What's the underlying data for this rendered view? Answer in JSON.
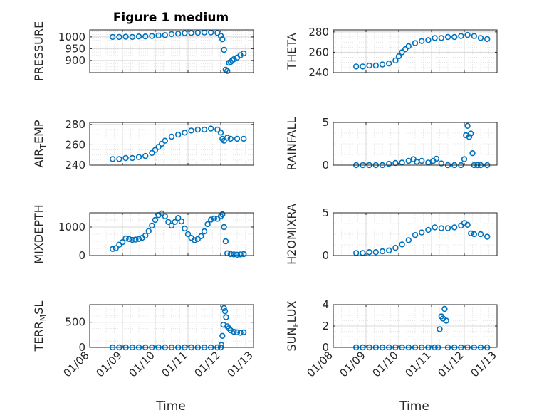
{
  "figure": {
    "title": "Figure 1 medium",
    "marker_color": "#0072bd",
    "axis_color": "#262626",
    "grid_color": "#dfdfdf",
    "xlabel": "Time",
    "xtick_labels": [
      "01/08",
      "01/09",
      "01/10",
      "01/11",
      "01/12",
      "01/13"
    ]
  },
  "chart_data": [
    {
      "type": "scatter",
      "ylabel": "PRESSURE",
      "xlim": [
        8,
        13
      ],
      "ylim": [
        848,
        1030
      ],
      "yticks": [
        900,
        950,
        1000
      ],
      "x": [
        8.7,
        8.9,
        9.1,
        9.3,
        9.5,
        9.7,
        9.9,
        10.1,
        10.3,
        10.5,
        10.7,
        10.9,
        11.1,
        11.3,
        11.5,
        11.7,
        11.9,
        12.0,
        12.05,
        12.1,
        12.15,
        12.2,
        12.25,
        12.3,
        12.35,
        12.4,
        12.5,
        12.6,
        12.7
      ],
      "y": [
        1000,
        1000,
        1001,
        1000,
        1002,
        1002,
        1004,
        1006,
        1008,
        1012,
        1014,
        1016,
        1017,
        1018,
        1019,
        1019,
        1017,
        1005,
        990,
        945,
        860,
        855,
        890,
        893,
        900,
        905,
        912,
        922,
        930
      ]
    },
    {
      "type": "scatter",
      "ylabel": "THETA",
      "xlim": [
        8,
        13
      ],
      "ylim": [
        240,
        282
      ],
      "yticks": [
        240,
        260,
        280
      ],
      "x": [
        8.7,
        8.9,
        9.1,
        9.3,
        9.5,
        9.7,
        9.9,
        10.0,
        10.1,
        10.2,
        10.3,
        10.5,
        10.7,
        10.9,
        11.1,
        11.3,
        11.5,
        11.7,
        11.9,
        12.1,
        12.3,
        12.5,
        12.7
      ],
      "y": [
        246,
        246,
        247,
        247,
        248,
        249,
        252,
        256,
        260,
        263,
        266,
        269,
        271,
        272,
        274,
        274,
        275,
        275,
        276,
        277,
        276,
        274,
        273
      ]
    },
    {
      "type": "scatter",
      "ylabel": "AIR_TEMP",
      "xlim": [
        8,
        13
      ],
      "ylim": [
        240,
        282
      ],
      "yticks": [
        240,
        260,
        280
      ],
      "x": [
        8.7,
        8.9,
        9.1,
        9.3,
        9.5,
        9.7,
        9.9,
        10.0,
        10.1,
        10.2,
        10.3,
        10.5,
        10.7,
        10.9,
        11.1,
        11.3,
        11.5,
        11.7,
        11.9,
        12.0,
        12.05,
        12.1,
        12.2,
        12.3,
        12.5,
        12.7
      ],
      "y": [
        246,
        246,
        247,
        247,
        248,
        249,
        252,
        255,
        258,
        261,
        264,
        268,
        270,
        272,
        274,
        275,
        275,
        276,
        275,
        272,
        266,
        264,
        267,
        266,
        266,
        266
      ]
    },
    {
      "type": "scatter",
      "ylabel": "RAINFALL",
      "xlim": [
        8,
        13
      ],
      "ylim": [
        0,
        5
      ],
      "yticks": [
        0,
        5
      ],
      "x": [
        8.7,
        8.9,
        9.1,
        9.3,
        9.5,
        9.7,
        9.9,
        10.1,
        10.3,
        10.45,
        10.55,
        10.7,
        10.9,
        11.05,
        11.15,
        11.3,
        11.5,
        11.7,
        11.9,
        12.0,
        12.05,
        12.1,
        12.15,
        12.2,
        12.25,
        12.3,
        12.4,
        12.5,
        12.7
      ],
      "y": [
        0,
        0,
        0,
        0,
        0,
        0.15,
        0.25,
        0.3,
        0.5,
        0.7,
        0.4,
        0.5,
        0.3,
        0.5,
        0.75,
        0.2,
        0,
        0,
        0,
        0.7,
        3.5,
        4.6,
        3.3,
        3.7,
        1.4,
        0,
        0,
        0,
        0
      ]
    },
    {
      "type": "scatter",
      "ylabel": "MIXDEPTH",
      "xlim": [
        8,
        13
      ],
      "ylim": [
        0,
        1500
      ],
      "yticks": [
        0,
        1000
      ],
      "x": [
        8.7,
        8.8,
        8.9,
        9.0,
        9.1,
        9.2,
        9.3,
        9.4,
        9.5,
        9.6,
        9.7,
        9.8,
        9.9,
        10.0,
        10.1,
        10.2,
        10.3,
        10.4,
        10.5,
        10.6,
        10.7,
        10.8,
        10.9,
        11.0,
        11.1,
        11.2,
        11.3,
        11.4,
        11.5,
        11.6,
        11.7,
        11.8,
        11.9,
        12.0,
        12.05,
        12.1,
        12.15,
        12.2,
        12.3,
        12.4,
        12.5,
        12.6,
        12.7
      ],
      "y": [
        230,
        260,
        380,
        470,
        600,
        580,
        550,
        560,
        580,
        620,
        700,
        860,
        1050,
        1250,
        1420,
        1480,
        1380,
        1180,
        1050,
        1180,
        1320,
        1200,
        950,
        750,
        620,
        540,
        580,
        680,
        850,
        1100,
        1260,
        1300,
        1290,
        1380,
        1450,
        1000,
        500,
        80,
        50,
        40,
        30,
        40,
        50
      ]
    },
    {
      "type": "scatter",
      "ylabel": "H2OMIXRA",
      "xlim": [
        8,
        13
      ],
      "ylim": [
        0,
        5
      ],
      "yticks": [
        0,
        5
      ],
      "x": [
        8.7,
        8.9,
        9.1,
        9.3,
        9.5,
        9.7,
        9.9,
        10.1,
        10.3,
        10.5,
        10.7,
        10.9,
        11.1,
        11.3,
        11.5,
        11.7,
        11.9,
        12.0,
        12.1,
        12.2,
        12.3,
        12.5,
        12.7
      ],
      "y": [
        0.3,
        0.3,
        0.4,
        0.4,
        0.5,
        0.6,
        0.9,
        1.3,
        1.8,
        2.4,
        2.7,
        3.0,
        3.3,
        3.2,
        3.2,
        3.3,
        3.5,
        3.8,
        3.6,
        2.6,
        2.5,
        2.5,
        2.2
      ]
    },
    {
      "type": "scatter",
      "ylabel": "TERR_MSL",
      "xlim": [
        8,
        13
      ],
      "ylim": [
        0,
        850
      ],
      "yticks": [
        0,
        500
      ],
      "x": [
        8.7,
        8.9,
        9.1,
        9.3,
        9.5,
        9.7,
        9.9,
        10.1,
        10.3,
        10.5,
        10.7,
        10.9,
        11.1,
        11.3,
        11.5,
        11.7,
        11.9,
        12.0,
        12.02,
        12.05,
        12.08,
        12.1,
        12.13,
        12.16,
        12.2,
        12.25,
        12.3,
        12.4,
        12.5,
        12.6,
        12.7
      ],
      "y": [
        0,
        0,
        0,
        0,
        0,
        0,
        0,
        0,
        0,
        0,
        0,
        0,
        0,
        0,
        0,
        0,
        0,
        0,
        50,
        230,
        450,
        780,
        720,
        600,
        420,
        380,
        340,
        310,
        300,
        290,
        300
      ]
    },
    {
      "type": "scatter",
      "ylabel": "SUN_FLUX",
      "xlim": [
        8,
        13
      ],
      "ylim": [
        0,
        4
      ],
      "yticks": [
        0,
        2,
        4
      ],
      "x": [
        8.7,
        8.9,
        9.1,
        9.3,
        9.5,
        9.7,
        9.9,
        10.1,
        10.3,
        10.5,
        10.7,
        10.9,
        11.1,
        11.2,
        11.25,
        11.3,
        11.35,
        11.4,
        11.45,
        11.5,
        11.7,
        11.9,
        12.1,
        12.3,
        12.5,
        12.7
      ],
      "y": [
        0,
        0,
        0,
        0,
        0,
        0,
        0,
        0,
        0,
        0,
        0,
        0,
        0,
        0,
        1.7,
        2.9,
        2.7,
        3.6,
        2.5,
        0,
        0,
        0,
        0,
        0,
        0,
        0
      ]
    }
  ]
}
